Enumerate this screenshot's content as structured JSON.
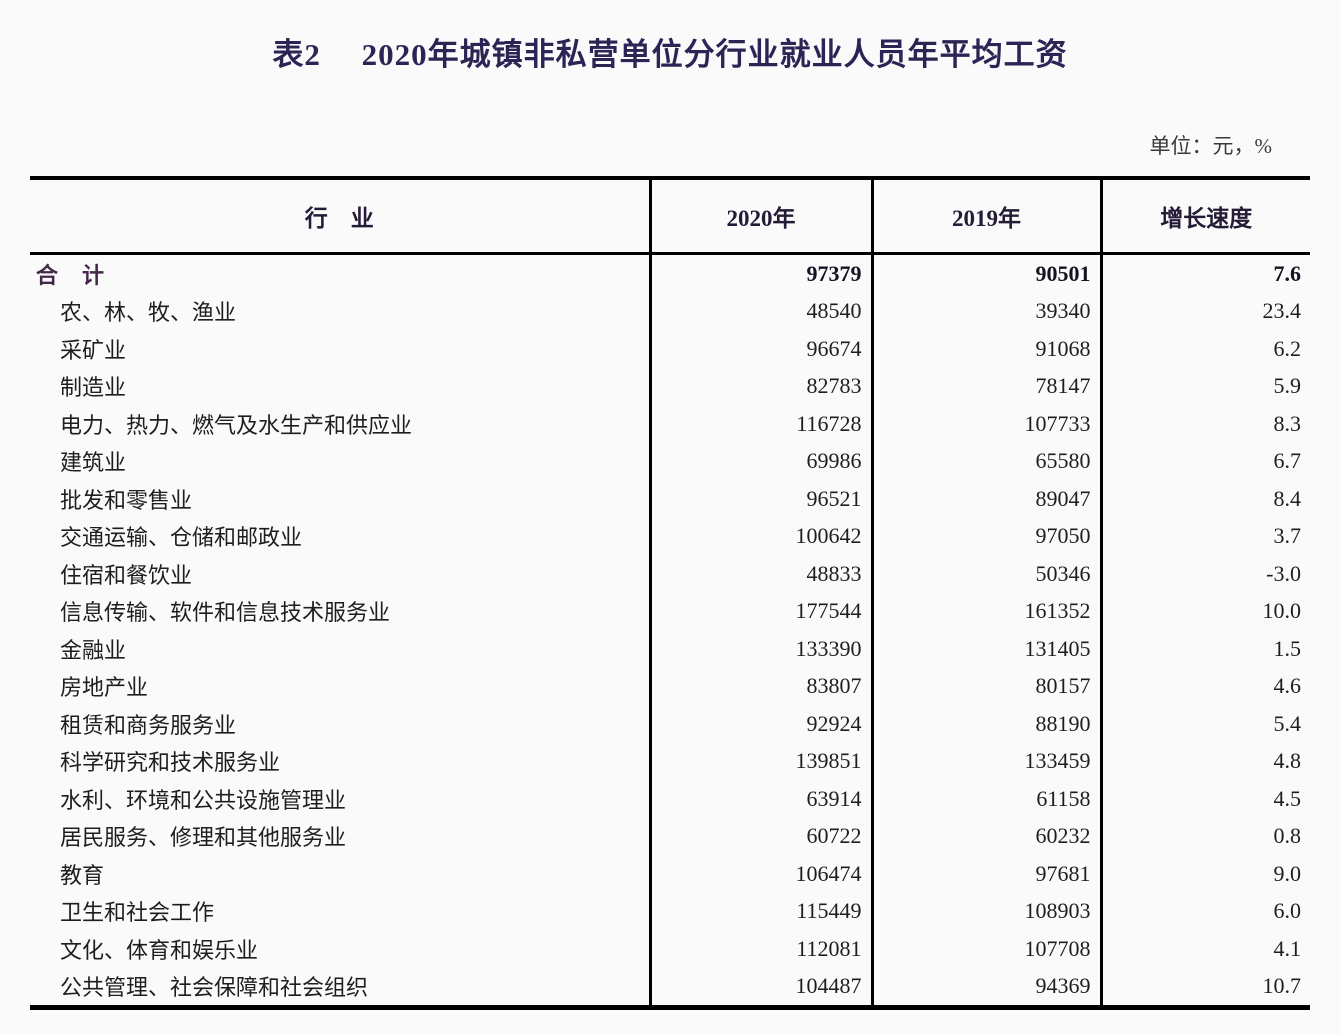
{
  "page": {
    "title": "表2　 2020年城镇非私营单位分行业就业人员年平均工资",
    "unit_note": "单位：元，%"
  },
  "colors": {
    "title_text": "#2c2454",
    "header_text": "#241b36",
    "total_row_text": "#44284a",
    "body_text": "#1e1e1e",
    "table_border": "#000000",
    "background": "#fafafa"
  },
  "table": {
    "columns": {
      "industry": "行　业",
      "y2020": "2020年",
      "y2019": "2019年",
      "growth": "增长速度"
    },
    "rows": [
      {
        "industry": "合　计",
        "y2020": "97379",
        "y2019": "90501",
        "growth": "7.6",
        "total": true
      },
      {
        "industry": "农、林、牧、渔业",
        "y2020": "48540",
        "y2019": "39340",
        "growth": "23.4"
      },
      {
        "industry": "采矿业",
        "y2020": "96674",
        "y2019": "91068",
        "growth": "6.2"
      },
      {
        "industry": "制造业",
        "y2020": "82783",
        "y2019": "78147",
        "growth": "5.9"
      },
      {
        "industry": "电力、热力、燃气及水生产和供应业",
        "y2020": "116728",
        "y2019": "107733",
        "growth": "8.3"
      },
      {
        "industry": "建筑业",
        "y2020": "69986",
        "y2019": "65580",
        "growth": "6.7"
      },
      {
        "industry": "批发和零售业",
        "y2020": "96521",
        "y2019": "89047",
        "growth": "8.4"
      },
      {
        "industry": "交通运输、仓储和邮政业",
        "y2020": "100642",
        "y2019": "97050",
        "growth": "3.7"
      },
      {
        "industry": "住宿和餐饮业",
        "y2020": "48833",
        "y2019": "50346",
        "growth": "-3.0"
      },
      {
        "industry": "信息传输、软件和信息技术服务业",
        "y2020": "177544",
        "y2019": "161352",
        "growth": "10.0"
      },
      {
        "industry": "金融业",
        "y2020": "133390",
        "y2019": "131405",
        "growth": "1.5"
      },
      {
        "industry": "房地产业",
        "y2020": "83807",
        "y2019": "80157",
        "growth": "4.6"
      },
      {
        "industry": "租赁和商务服务业",
        "y2020": "92924",
        "y2019": "88190",
        "growth": "5.4"
      },
      {
        "industry": "科学研究和技术服务业",
        "y2020": "139851",
        "y2019": "133459",
        "growth": "4.8"
      },
      {
        "industry": "水利、环境和公共设施管理业",
        "y2020": "63914",
        "y2019": "61158",
        "growth": "4.5"
      },
      {
        "industry": "居民服务、修理和其他服务业",
        "y2020": "60722",
        "y2019": "60232",
        "growth": "0.8"
      },
      {
        "industry": "教育",
        "y2020": "106474",
        "y2019": "97681",
        "growth": "9.0"
      },
      {
        "industry": "卫生和社会工作",
        "y2020": "115449",
        "y2019": "108903",
        "growth": "6.0"
      },
      {
        "industry": "文化、体育和娱乐业",
        "y2020": "112081",
        "y2019": "107708",
        "growth": "4.1"
      },
      {
        "industry": "公共管理、社会保障和社会组织",
        "y2020": "104487",
        "y2019": "94369",
        "growth": "10.7"
      }
    ]
  }
}
